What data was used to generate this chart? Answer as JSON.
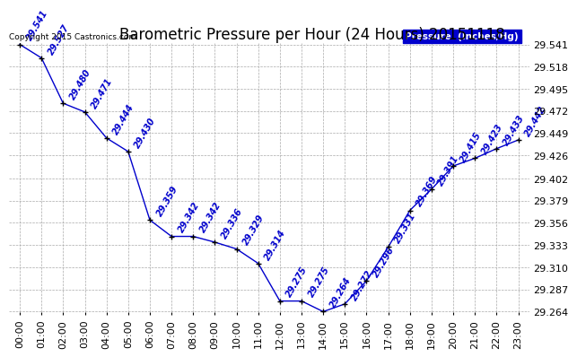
{
  "title": "Barometric Pressure per Hour (24 Hours) 20151118",
  "copyright": "Copyright 2015 Castronics.com",
  "legend_label": "Pressure  (Inches/Hg)",
  "hours": [
    "00:00",
    "01:00",
    "02:00",
    "03:00",
    "04:00",
    "05:00",
    "06:00",
    "07:00",
    "08:00",
    "09:00",
    "10:00",
    "11:00",
    "12:00",
    "13:00",
    "14:00",
    "15:00",
    "16:00",
    "17:00",
    "18:00",
    "19:00",
    "20:00",
    "21:00",
    "22:00",
    "23:00"
  ],
  "values": [
    29.541,
    29.527,
    29.48,
    29.471,
    29.444,
    29.43,
    29.359,
    29.342,
    29.342,
    29.336,
    29.329,
    29.314,
    29.275,
    29.275,
    29.264,
    29.272,
    29.296,
    29.331,
    29.369,
    29.391,
    29.415,
    29.423,
    29.433,
    29.442
  ],
  "line_color": "#0000cc",
  "marker_color": "#000000",
  "label_color": "#0000cc",
  "background_color": "#ffffff",
  "grid_color": "#aaaaaa",
  "title_color": "#000000",
  "ylim_min": 29.264,
  "ylim_max": 29.541,
  "yticks": [
    29.264,
    29.287,
    29.31,
    29.333,
    29.356,
    29.379,
    29.402,
    29.426,
    29.449,
    29.472,
    29.495,
    29.518,
    29.541
  ],
  "title_fontsize": 12,
  "label_fontsize": 7,
  "axis_fontsize": 8,
  "legend_bg": "#0000cc",
  "legend_text_color": "#ffffff"
}
